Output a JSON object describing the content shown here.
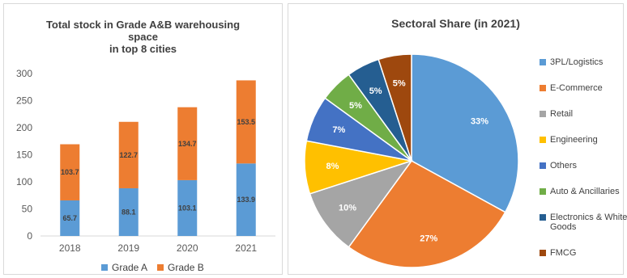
{
  "colors": {
    "blue": "#5b9bd5",
    "orange": "#ed7d31",
    "gray": "#a5a5a5",
    "yellow": "#ffc000",
    "darkblue": "#4472c4",
    "green": "#70ad47",
    "navy": "#255e91",
    "brown": "#9e480e"
  },
  "chart_data": [
    {
      "type": "bar",
      "stacked": true,
      "title": [
        "Total stock in Grade A&B warehousing",
        "space",
        "in top 8 cities"
      ],
      "categories": [
        "2018",
        "2019",
        "2020",
        "2021"
      ],
      "series": [
        {
          "name": "Grade A",
          "values": [
            65.7,
            88.1,
            103.1,
            133.9
          ],
          "color": "#5b9bd5"
        },
        {
          "name": "Grade B",
          "values": [
            103.7,
            122.7,
            134.7,
            153.5
          ],
          "color": "#ed7d31"
        }
      ],
      "yticks": [
        "0",
        "50",
        "100",
        "150",
        "200",
        "250",
        "300"
      ],
      "ylim": [
        0,
        300
      ],
      "grid": false,
      "legend": "bottom"
    },
    {
      "type": "pie",
      "title": "Sectoral Share (in 2021)",
      "slices": [
        {
          "name": "3PL/Logistics",
          "label": "33%",
          "value": 33,
          "color": "#5b9bd5"
        },
        {
          "name": "E-Commerce",
          "label": "27%",
          "value": 27,
          "color": "#ed7d31"
        },
        {
          "name": "Retail",
          "label": "10%",
          "value": 10,
          "color": "#a5a5a5"
        },
        {
          "name": "Engineering",
          "label": "8%",
          "value": 8,
          "color": "#ffc000"
        },
        {
          "name": "Others",
          "label": "7%",
          "value": 7,
          "color": "#4472c4"
        },
        {
          "name": "Auto & Ancillaries",
          "label": "5%",
          "value": 5,
          "color": "#70ad47"
        },
        {
          "name": "Electronics & White Goods",
          "label": "5%",
          "value": 5,
          "color": "#255e91"
        },
        {
          "name": "FMCG",
          "label": "5%",
          "value": 5,
          "color": "#9e480e"
        }
      ],
      "legend": "right"
    }
  ]
}
